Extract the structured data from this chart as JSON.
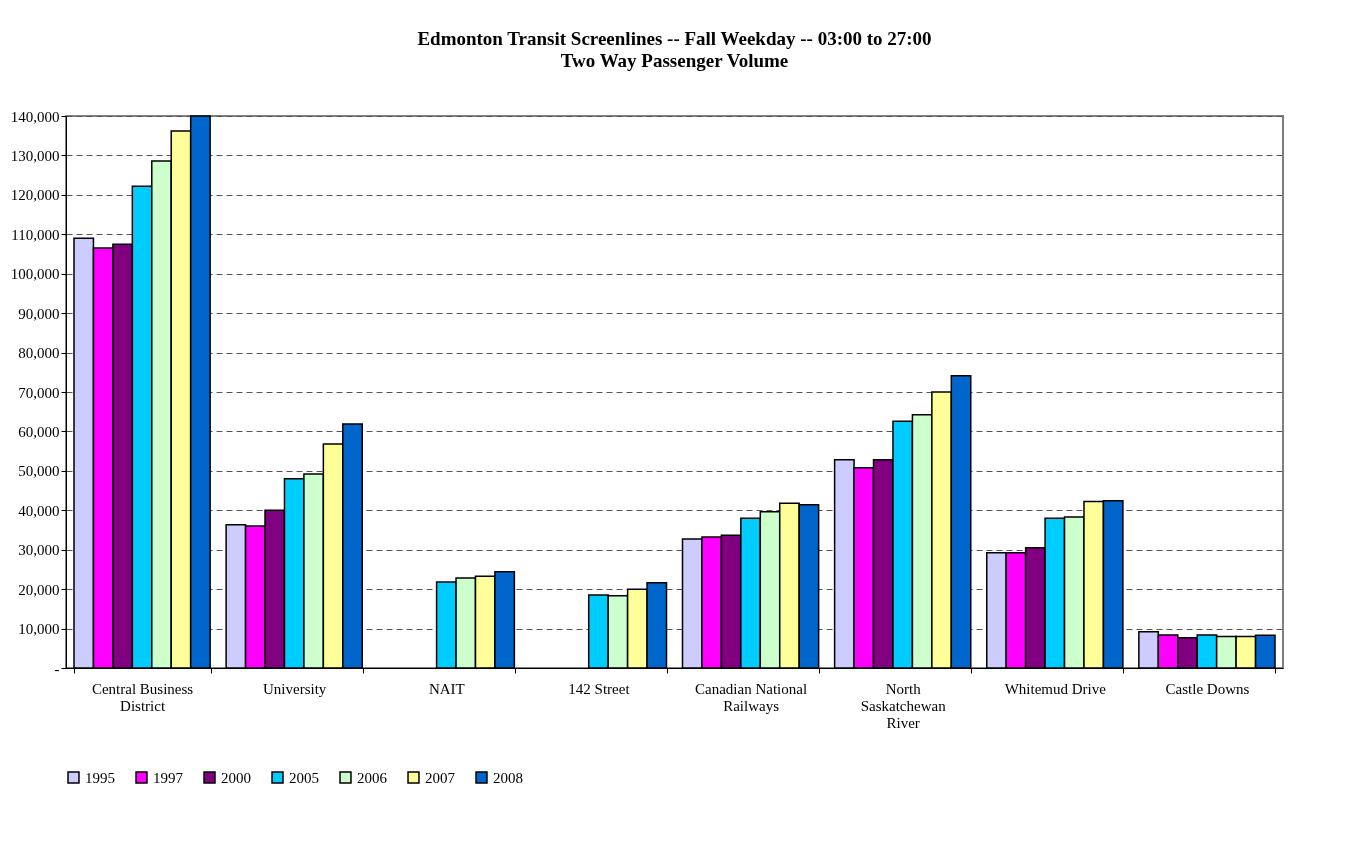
{
  "chart_data": {
    "type": "bar",
    "title": "Edmonton Transit Screenlines -- Fall Weekday -- 03:00 to 27:00",
    "subtitle": "Two Way Passenger Volume",
    "categories": [
      "Central Business District",
      "University",
      "NAIT",
      "142 Street",
      "Canadian National Railways",
      "North Saskatchewan River",
      "Whitemud Drive",
      "Castle Downs"
    ],
    "series": [
      {
        "name": "1995",
        "color": "#ccccff",
        "values": [
          109000,
          36300,
          null,
          null,
          32700,
          52800,
          29200,
          9200
        ]
      },
      {
        "name": "1997",
        "color": "#ff00ff",
        "values": [
          106500,
          36000,
          null,
          null,
          33200,
          50800,
          29200,
          8400
        ]
      },
      {
        "name": "2000",
        "color": "#800080",
        "values": [
          107500,
          40000,
          null,
          null,
          33700,
          52800,
          30500,
          7700
        ]
      },
      {
        "name": "2005",
        "color": "#00ccff",
        "values": [
          122200,
          48000,
          21800,
          18500,
          38000,
          62600,
          38000,
          8400
        ]
      },
      {
        "name": "2006",
        "color": "#ccffcc",
        "values": [
          128600,
          49200,
          22800,
          18300,
          39600,
          64200,
          38300,
          8000
        ]
      },
      {
        "name": "2007",
        "color": "#ffff99",
        "values": [
          136200,
          56800,
          23300,
          20000,
          41800,
          70000,
          42200,
          8000
        ]
      },
      {
        "name": "2008",
        "color": "#0066cc",
        "values": [
          140000,
          61900,
          24400,
          21600,
          41400,
          74100,
          42400,
          8300
        ]
      }
    ],
    "ylim": [
      0,
      140000
    ],
    "yticks": [
      {
        "value": 0,
        "label": "-"
      },
      {
        "value": 10000,
        "label": "10,000"
      },
      {
        "value": 20000,
        "label": "20,000"
      },
      {
        "value": 30000,
        "label": "30,000"
      },
      {
        "value": 40000,
        "label": "40,000"
      },
      {
        "value": 50000,
        "label": "50,000"
      },
      {
        "value": 60000,
        "label": "60,000"
      },
      {
        "value": 70000,
        "label": "70,000"
      },
      {
        "value": 80000,
        "label": "80,000"
      },
      {
        "value": 90000,
        "label": "90,000"
      },
      {
        "value": 100000,
        "label": "100,000"
      },
      {
        "value": 110000,
        "label": "110,000"
      },
      {
        "value": 120000,
        "label": "120,000"
      },
      {
        "value": 130000,
        "label": "130,000"
      },
      {
        "value": 140000,
        "label": "140,000"
      }
    ],
    "grid": "y",
    "legend": "bottom"
  }
}
